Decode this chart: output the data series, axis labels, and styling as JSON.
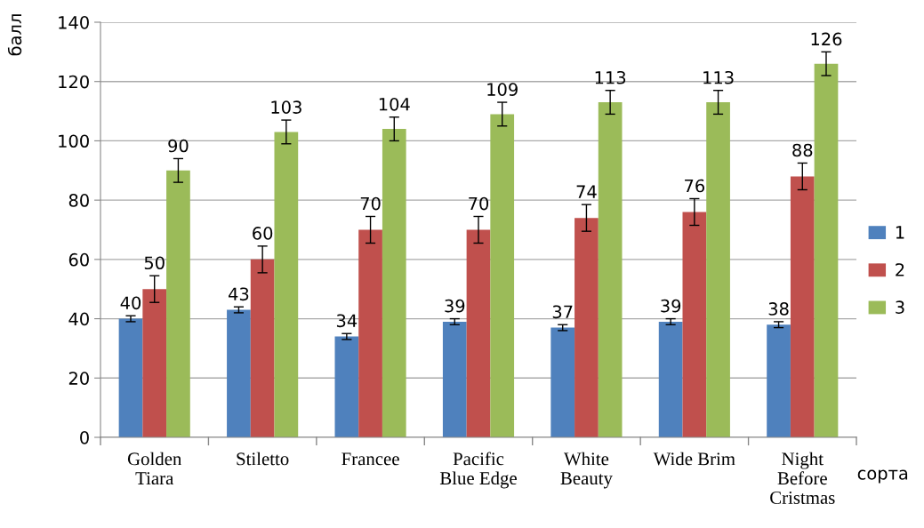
{
  "chart_data": {
    "type": "bar",
    "ylabel": "балл",
    "xlabel": "сорта",
    "categories": [
      "Golden\nTiara",
      "Stiletto",
      "Francee",
      "Pacific\nBlue Edge",
      "White\nBeauty",
      "Wide Brim",
      "Night\nBefore\nCristmas"
    ],
    "series": [
      {
        "name": "1",
        "color": "#4f81bd",
        "values": [
          40,
          43,
          34,
          39,
          37,
          39,
          38
        ],
        "errors": [
          1,
          1,
          1,
          1,
          1,
          1,
          1
        ]
      },
      {
        "name": "2",
        "color": "#c0504d",
        "values": [
          50,
          60,
          70,
          70,
          74,
          76,
          88
        ],
        "errors": [
          4.5,
          4.5,
          4.5,
          4.5,
          4.5,
          4.5,
          4.5
        ]
      },
      {
        "name": "3",
        "color": "#9bbb59",
        "values": [
          90,
          103,
          104,
          109,
          113,
          113,
          126
        ],
        "errors": [
          4,
          4,
          4,
          4,
          4,
          4,
          4
        ]
      }
    ],
    "ylim": [
      0,
      140
    ],
    "yticks": [
      0,
      20,
      40,
      60,
      80,
      100,
      120,
      140
    ],
    "grid": "y",
    "legend": "right",
    "data_labels": true
  }
}
